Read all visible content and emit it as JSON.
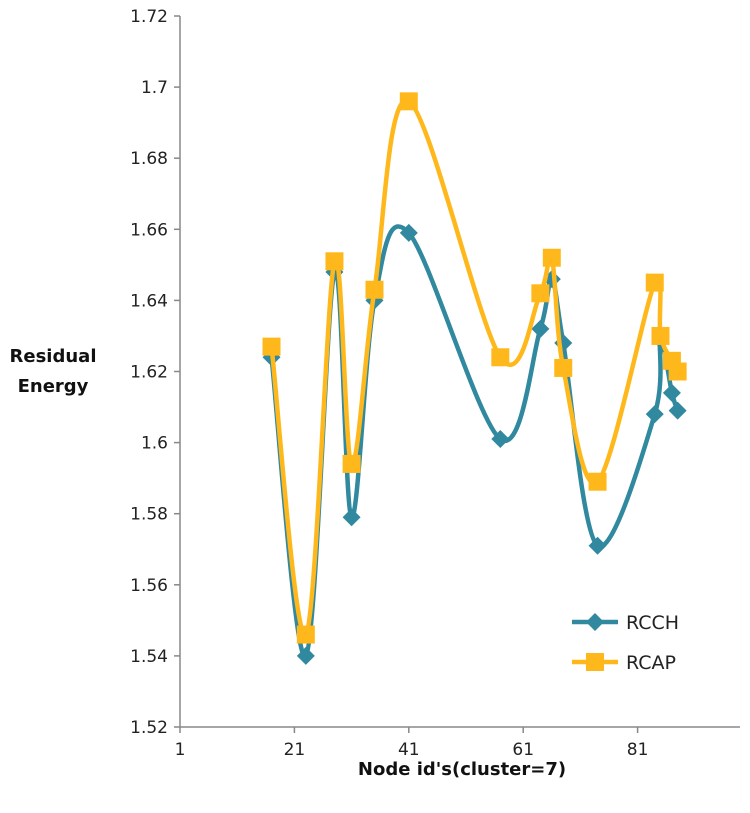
{
  "chart_data": {
    "type": "line",
    "title": "",
    "xlabel": "Node id's(cluster=7)",
    "ylabel_lines": [
      "Residual",
      "Energy"
    ],
    "xlim": [
      1,
      100
    ],
    "ylim": [
      1.52,
      1.72
    ],
    "x_ticks": [
      1,
      21,
      41,
      61,
      81
    ],
    "y_ticks": [
      1.52,
      1.54,
      1.56,
      1.58,
      1.6,
      1.62,
      1.64,
      1.66,
      1.68,
      1.7,
      1.72
    ],
    "grid": false,
    "smooth": true,
    "legend_position": "bottom-right",
    "x": [
      17,
      23,
      28,
      31,
      35,
      41,
      57,
      64,
      66,
      68,
      74,
      84,
      85,
      87,
      88
    ],
    "series": [
      {
        "name": "RCCH",
        "color": "#31899f",
        "marker": "diamond",
        "values": [
          1.624,
          1.54,
          1.648,
          1.579,
          1.64,
          1.659,
          1.601,
          1.632,
          1.646,
          1.628,
          1.571,
          1.608,
          1.629,
          1.614,
          1.609
        ]
      },
      {
        "name": "RCAP",
        "color": "#ffb81c",
        "marker": "square",
        "values": [
          1.627,
          1.546,
          1.651,
          1.594,
          1.643,
          1.696,
          1.624,
          1.642,
          1.652,
          1.621,
          1.589,
          1.645,
          1.63,
          1.623,
          1.62
        ]
      }
    ]
  }
}
